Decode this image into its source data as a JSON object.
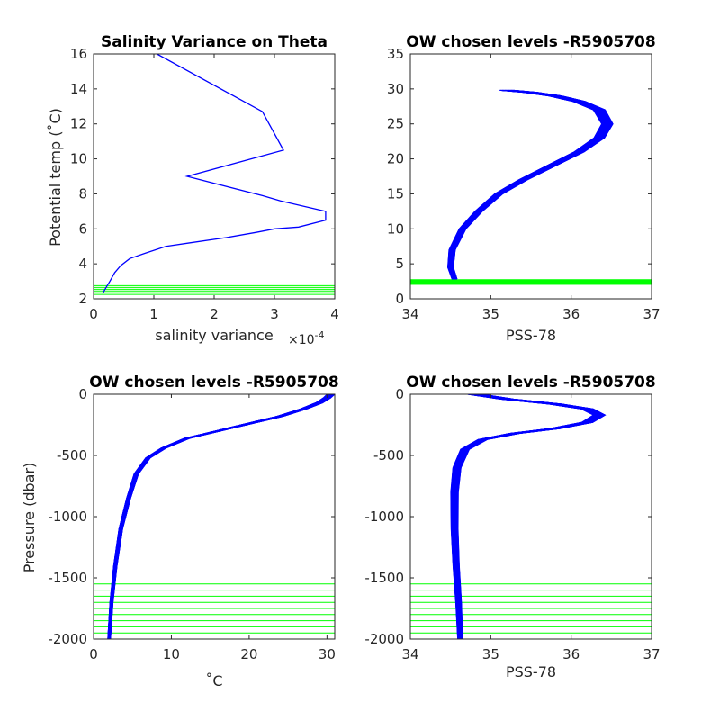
{
  "chart_data": [
    {
      "type": "line",
      "title": "Salinity Variance on Theta",
      "xlabel": "salinity variance",
      "x_exponent_label": "×10",
      "x_exponent_power": "-4",
      "ylabel": "Potential temp (˚C)",
      "xlim": [
        0,
        4
      ],
      "ylim": [
        2,
        16
      ],
      "xticks": [
        0,
        1,
        2,
        3,
        4
      ],
      "yticks": [
        2,
        4,
        6,
        8,
        10,
        12,
        14,
        16
      ],
      "xtick_labels": [
        "0",
        "1",
        "2",
        "3",
        "4"
      ],
      "ytick_labels": [
        "2",
        "4",
        "6",
        "8",
        "10",
        "12",
        "14",
        "16"
      ],
      "series": [
        {
          "color": "#0000ff",
          "x": [
            0.15,
            0.2,
            0.27,
            0.35,
            0.45,
            0.6,
            0.85,
            1.2,
            1.6,
            2.2,
            2.7,
            3.0,
            3.4,
            3.85,
            3.85,
            3.1,
            2.8,
            1.55,
            3.15,
            2.8,
            1.05
          ],
          "y": [
            2.3,
            2.6,
            3.0,
            3.5,
            3.9,
            4.3,
            4.6,
            5.0,
            5.2,
            5.5,
            5.8,
            6.0,
            6.1,
            6.5,
            7.0,
            7.6,
            7.9,
            9.0,
            10.5,
            12.7,
            16.0
          ]
        }
      ],
      "reference_lines_y": [
        2.25,
        2.35,
        2.45,
        2.55,
        2.65,
        2.75
      ],
      "reference_color": "#00ff00"
    },
    {
      "type": "line",
      "title": "OW chosen levels -R5905708",
      "xlabel": "PSS-78",
      "ylabel": "",
      "xlim": [
        34,
        37
      ],
      "ylim": [
        0,
        35
      ],
      "xticks": [
        34,
        35,
        36,
        37
      ],
      "yticks": [
        0,
        5,
        10,
        15,
        20,
        25,
        30,
        35
      ],
      "xtick_labels": [
        "34",
        "35",
        "36",
        "37"
      ],
      "ytick_labels": [
        "0",
        "5",
        "10",
        "15",
        "20",
        "25",
        "30",
        "35"
      ],
      "profile": {
        "color": "#0000ff",
        "x": [
          34.55,
          34.5,
          34.52,
          34.65,
          34.85,
          35.1,
          35.4,
          35.75,
          36.1,
          36.35,
          36.45,
          36.35,
          36.1,
          35.8,
          35.5,
          35.2
        ],
        "y": [
          2.8,
          4.5,
          7.0,
          10.0,
          12.5,
          15.0,
          17.0,
          19.0,
          21.0,
          23.0,
          25.0,
          27.0,
          28.2,
          29.0,
          29.5,
          29.8
        ],
        "envelope_count": 60,
        "spread_x": 0.09
      },
      "reference_band_y": [
        2.0,
        2.8
      ],
      "reference_color": "#00ff00"
    },
    {
      "type": "line",
      "title": "OW chosen levels -R5905708",
      "xlabel": "˚C",
      "ylabel": "Pressure (dbar)",
      "xlim": [
        0,
        31
      ],
      "ylim": [
        -2000,
        0
      ],
      "xticks": [
        0,
        10,
        20,
        30
      ],
      "yticks": [
        -2000,
        -1500,
        -1000,
        -500,
        0
      ],
      "xtick_labels": [
        "0",
        "10",
        "20",
        "30"
      ],
      "ytick_labels": [
        "-2000",
        "-1500",
        "-1000",
        "-500",
        "0"
      ],
      "profile": {
        "color": "#0000ff",
        "x": [
          2.0,
          2.3,
          2.8,
          3.5,
          4.5,
          5.5,
          7.0,
          9.0,
          12.0,
          16.0,
          20.0,
          24.0,
          27.0,
          29.0,
          30.0,
          30.5
        ],
        "y": [
          -2000,
          -1700,
          -1400,
          -1100,
          -850,
          -650,
          -520,
          -440,
          -360,
          -300,
          -240,
          -180,
          -120,
          -70,
          -30,
          0
        ],
        "envelope_count": 60,
        "spread_x": 0.5
      },
      "reference_lines_y": [
        -1550,
        -1600,
        -1650,
        -1700,
        -1750,
        -1800,
        -1850,
        -1900,
        -1950,
        -2000
      ],
      "reference_color": "#00ff00"
    },
    {
      "type": "line",
      "title": "OW chosen levels -R5905708",
      "xlabel": "PSS-78",
      "ylabel": "",
      "xlim": [
        34,
        37
      ],
      "ylim": [
        -2000,
        0
      ],
      "xticks": [
        34,
        35,
        36,
        37
      ],
      "yticks": [
        -2000,
        -1500,
        -1000,
        -500,
        0
      ],
      "xtick_labels": [
        "34",
        "35",
        "36",
        "37"
      ],
      "ytick_labels": [
        "-2000",
        "-1500",
        "-1000",
        "-500",
        "0"
      ],
      "profile": {
        "color": "#0000ff",
        "x": [
          34.62,
          34.6,
          34.57,
          34.55,
          34.55,
          34.58,
          34.68,
          34.9,
          35.3,
          35.8,
          36.2,
          36.35,
          36.2,
          35.8,
          35.2,
          34.8
        ],
        "y": [
          -2000,
          -1700,
          -1400,
          -1100,
          -800,
          -600,
          -450,
          -370,
          -320,
          -280,
          -230,
          -170,
          -120,
          -80,
          -40,
          0
        ],
        "envelope_count": 60,
        "spread_x": 0.09
      },
      "reference_lines_y": [
        -1550,
        -1600,
        -1650,
        -1700,
        -1750,
        -1800,
        -1850,
        -1900,
        -1950,
        -2000
      ],
      "reference_color": "#00ff00"
    }
  ]
}
